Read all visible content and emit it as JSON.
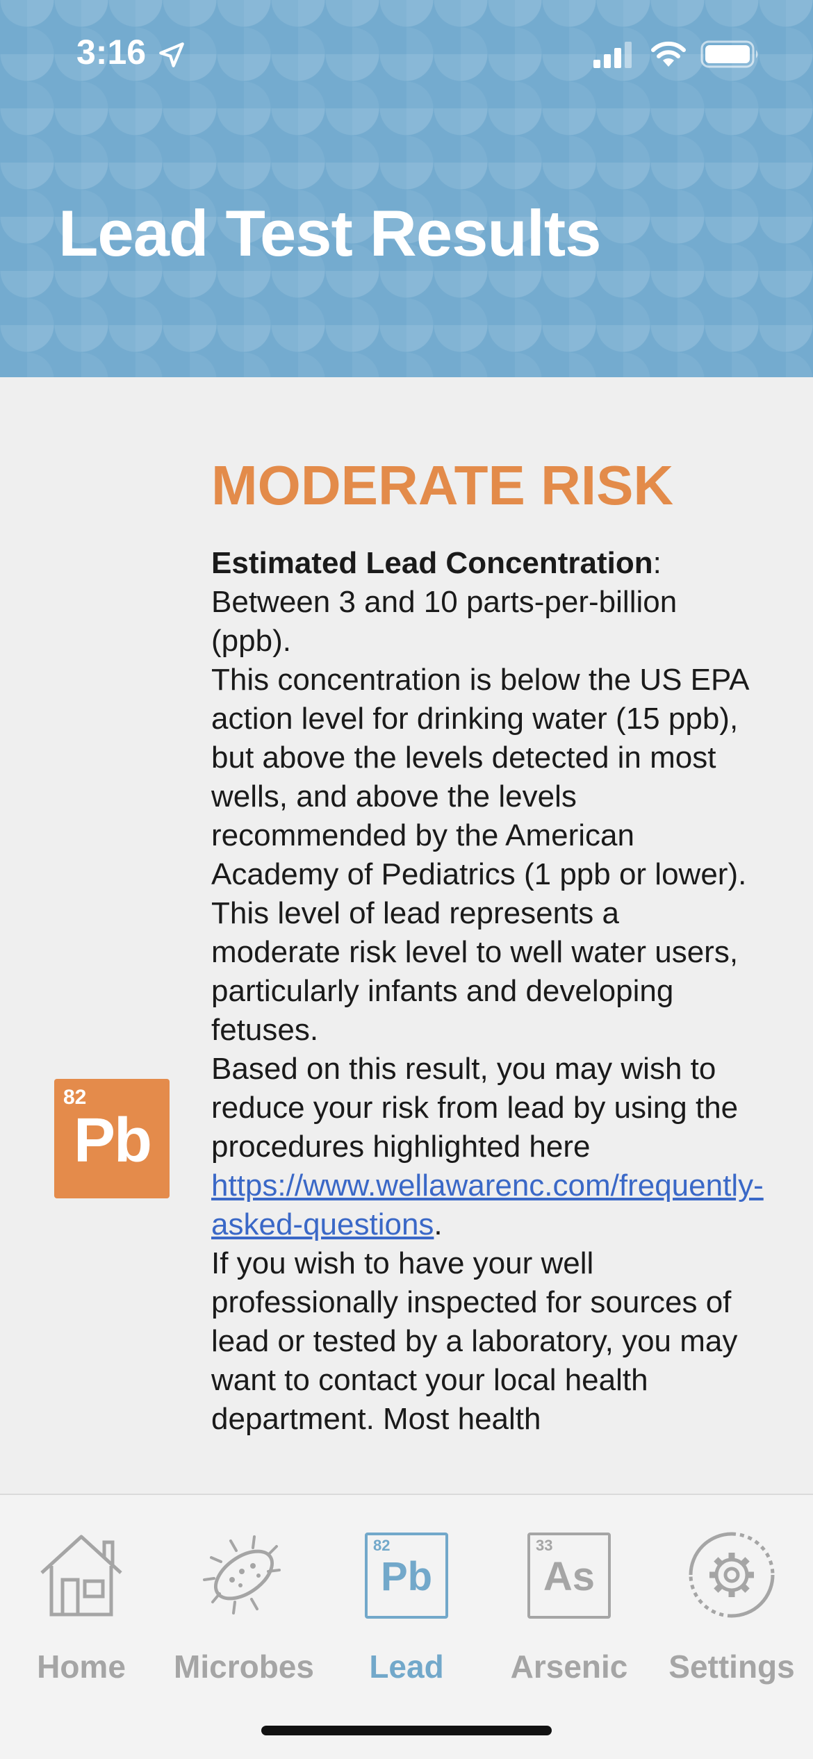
{
  "status_bar": {
    "time": "3:16",
    "icons": [
      "location-arrow-icon",
      "cellular-signal-icon",
      "wifi-icon",
      "battery-icon"
    ]
  },
  "header": {
    "title": "Lead Test Results",
    "background_color": "#74abcf"
  },
  "result": {
    "risk_level": "MODERATE RISK",
    "risk_color": "#e38b4a",
    "concentration_label": "Estimated Lead Concentration",
    "concentration_colon": ":",
    "concentration_value": "Between 3 and 10 parts-per-billion (ppb).",
    "paragraph_epa": "This concentration is below the US EPA action level for drinking water (15 ppb), but above the levels detected in most wells, and above the levels recommended by the American Academy of Pediatrics (1 ppb or lower).",
    "paragraph_risk": "This level of lead represents a moderate risk level to well water users, particularly infants and developing fetuses.",
    "paragraph_reduce_prefix": "Based on this result, you may wish to reduce your risk from lead by using the procedures highlighted here ",
    "reduce_link": "https://www.wellawarenc.com/frequently-asked-questions",
    "paragraph_reduce_suffix": ".",
    "paragraph_inspect": "If you wish to have your well professionally inspected for sources of lead or tested by a laboratory, you may want to contact your local health department. Most health"
  },
  "element_tile": {
    "atomic_number": "82",
    "symbol": "Pb",
    "color": "#e48b4b"
  },
  "tab_bar": {
    "active_color": "#72a8ca",
    "inactive_color": "#a5a5a5",
    "tabs": [
      {
        "label": "Home",
        "icon": "house-icon",
        "active": false
      },
      {
        "label": "Microbes",
        "icon": "microbe-icon",
        "active": false
      },
      {
        "label": "Lead",
        "icon": "lead-element-icon",
        "number": "82",
        "symbol": "Pb",
        "active": true
      },
      {
        "label": "Arsenic",
        "icon": "arsenic-element-icon",
        "number": "33",
        "symbol": "As",
        "active": false
      },
      {
        "label": "Settings",
        "icon": "gear-icon",
        "active": false
      }
    ]
  }
}
